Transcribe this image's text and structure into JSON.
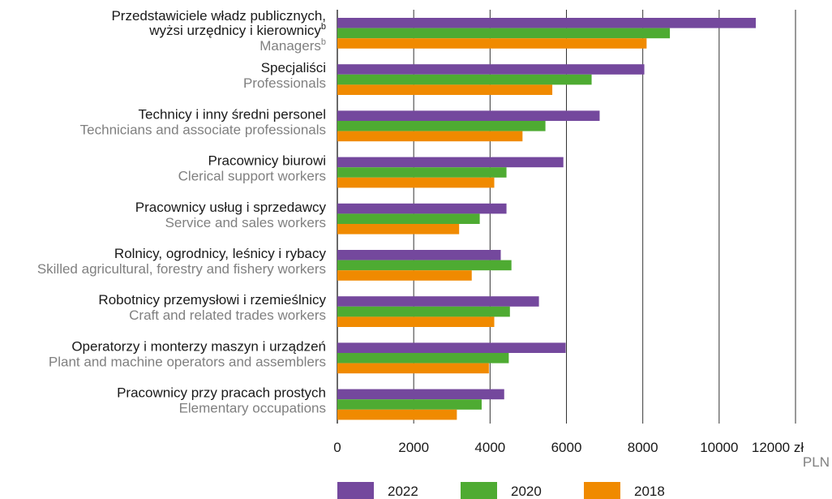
{
  "chart_data": {
    "type": "bar",
    "orientation": "horizontal",
    "categories": [
      {
        "pl": "Przedstawiciele władz publicznych,",
        "pl2": "wyżsi urzędnicy i kierownicy",
        "pl2_sup": "b",
        "en": "Managers",
        "en_sup": "b"
      },
      {
        "pl": "Specjaliści",
        "en": "Professionals"
      },
      {
        "pl": "Technicy i inny średni personel",
        "en": "Technicians and associate professionals"
      },
      {
        "pl": "Pracownicy biurowi",
        "en": "Clerical support workers"
      },
      {
        "pl": "Pracownicy usług i sprzedawcy",
        "en": "Service and sales workers"
      },
      {
        "pl": "Rolnicy, ogrodnicy, leśnicy i rybacy",
        "en": "Skilled agricultural, forestry and fishery workers"
      },
      {
        "pl": "Robotnicy przemysłowi i rzemieślnicy",
        "en": "Craft and related trades workers"
      },
      {
        "pl": "Operatorzy i monterzy maszyn i urządzeń",
        "en": "Plant and machine operators and assemblers"
      },
      {
        "pl": "Pracownicy przy pracach prostych",
        "en": "Elementary occupations"
      }
    ],
    "series": [
      {
        "name": "2022",
        "color": "#74489d",
        "values": [
          10960,
          8040,
          6870,
          5920,
          4430,
          4280,
          5280,
          5980,
          4370
        ]
      },
      {
        "name": "2020",
        "color": "#4eab32",
        "values": [
          8710,
          6660,
          5450,
          4430,
          3730,
          4560,
          4520,
          4490,
          3780
        ]
      },
      {
        "name": "2018",
        "color": "#f08a00",
        "values": [
          8100,
          5630,
          4850,
          4110,
          3190,
          3520,
          4110,
          3970,
          3130
        ]
      }
    ],
    "xlim": [
      0,
      12000
    ],
    "xticks": [
      0,
      2000,
      4000,
      6000,
      8000,
      10000,
      12000
    ],
    "xlabel_pl": "zł",
    "xlabel_en": "PLN",
    "grid": true,
    "legend_position": "bottom"
  }
}
